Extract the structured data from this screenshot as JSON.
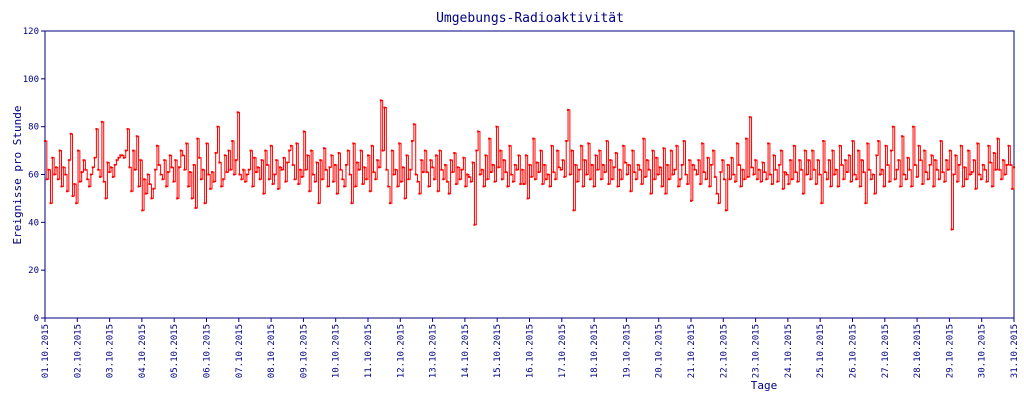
{
  "chart_data": {
    "type": "line",
    "title": "Umgebungs-Radioaktivität",
    "xlabel": "Tage",
    "ylabel": "Ereignisse pro Stunde",
    "ylim": [
      0,
      120
    ],
    "yticks": [
      0,
      20,
      40,
      60,
      80,
      100,
      120
    ],
    "xlim": [
      "01.10.2015",
      "31.10.2015"
    ],
    "xtick_labels": [
      "01.10.2015",
      "02.10.2015",
      "03.10.2015",
      "04.10.2015",
      "05.10.2015",
      "06.10.2015",
      "07.10.2015",
      "08.10.2015",
      "09.10.2015",
      "10.10.2015",
      "11.10.2015",
      "12.10.2015",
      "13.10.2015",
      "14.10.2015",
      "15.10.2015",
      "16.10.2015",
      "17.10.2015",
      "18.10.2015",
      "19.10.2015",
      "20.10.2015",
      "21.10.2015",
      "22.10.2015",
      "23.10.2015",
      "24.10.2015",
      "25.10.2015",
      "26.10.2015",
      "27.10.2015",
      "28.10.2015",
      "29.10.2015",
      "30.10.2015",
      "31.10.2015"
    ],
    "grid": false,
    "colors": {
      "line": "#ff0000",
      "axis": "#000080",
      "text": "#000080"
    },
    "series": [
      {
        "values": [
          [
            74,
            58,
            62,
            48,
            67,
            60,
            63,
            58,
            70,
            55,
            63,
            60,
            53,
            66,
            77,
            51,
            56,
            48,
            70,
            57,
            61,
            66,
            62,
            58,
            55,
            60
          ],
          [
            63,
            67,
            79,
            62,
            59,
            82,
            57,
            50,
            65,
            61,
            63,
            59,
            64,
            66,
            67,
            68,
            68,
            67,
            70,
            79,
            63,
            53,
            70,
            62,
            76,
            55
          ],
          [
            66,
            45,
            58,
            52,
            60,
            56,
            50,
            54,
            62,
            72,
            64,
            60,
            58,
            66,
            55,
            61,
            68,
            63,
            57,
            66,
            50,
            63,
            70,
            68,
            62,
            73
          ],
          [
            55,
            61,
            50,
            64,
            46,
            75,
            67,
            58,
            62,
            48,
            73,
            60,
            54,
            61,
            57,
            69,
            80,
            65,
            55,
            58,
            68,
            61,
            70,
            62,
            74,
            60
          ],
          [
            66,
            86,
            60,
            58,
            62,
            57,
            60,
            62,
            70,
            55,
            67,
            61,
            63,
            58,
            66,
            52,
            70,
            64,
            58,
            72,
            56,
            60,
            66,
            54,
            63,
            62
          ],
          [
            67,
            57,
            65,
            70,
            72,
            64,
            58,
            73,
            56,
            62,
            59,
            78,
            62,
            68,
            53,
            70,
            60,
            57,
            65,
            48,
            66,
            58,
            71,
            62,
            55,
            63
          ],
          [
            68,
            57,
            64,
            52,
            69,
            62,
            58,
            55,
            64,
            70,
            60,
            48,
            73,
            55,
            65,
            62,
            70,
            56,
            63,
            58,
            68,
            53,
            72,
            61,
            58,
            66
          ],
          [
            63,
            91,
            70,
            88,
            62,
            55,
            48,
            70,
            60,
            62,
            55,
            73,
            57,
            63,
            50,
            68,
            58,
            62,
            74,
            81,
            60,
            57,
            52,
            66,
            61,
            70
          ],
          [
            61,
            55,
            66,
            63,
            58,
            68,
            53,
            70,
            62,
            58,
            64,
            57,
            52,
            66,
            61,
            69,
            56,
            63,
            58,
            62,
            67,
            55,
            60,
            59,
            57,
            65
          ],
          [
            39,
            70,
            78,
            60,
            62,
            55,
            68,
            58,
            75,
            61,
            64,
            57,
            80,
            63,
            70,
            58,
            66,
            61,
            55,
            72,
            60,
            57,
            64,
            62,
            68,
            56
          ],
          [
            62,
            56,
            68,
            50,
            64,
            59,
            75,
            58,
            65,
            61,
            70,
            56,
            64,
            58,
            60,
            55,
            72,
            61,
            58,
            70,
            63,
            62,
            66,
            59,
            74,
            87
          ],
          [
            60,
            70,
            45,
            64,
            57,
            62,
            72,
            55,
            66,
            60,
            73,
            58,
            64,
            55,
            68,
            62,
            70,
            58,
            64,
            61,
            74,
            56,
            66,
            58,
            63,
            69
          ],
          [
            55,
            62,
            58,
            72,
            65,
            60,
            64,
            53,
            70,
            61,
            58,
            64,
            62,
            56,
            75,
            59,
            66,
            62,
            52,
            70,
            58,
            67,
            60,
            63,
            55,
            71
          ],
          [
            52,
            64,
            58,
            70,
            60,
            62,
            72,
            55,
            58,
            64,
            74,
            60,
            56,
            66,
            49,
            64,
            62,
            60,
            66,
            56,
            73,
            61,
            58,
            67,
            55,
            64
          ],
          [
            70,
            59,
            52,
            48,
            61,
            66,
            58,
            45,
            64,
            58,
            67,
            60,
            57,
            73,
            64,
            55,
            62,
            58,
            75,
            59,
            84,
            63,
            60,
            66,
            58,
            62
          ],
          [
            57,
            65,
            61,
            58,
            73,
            60,
            56,
            68,
            62,
            57,
            64,
            70,
            54,
            61,
            60,
            56,
            66,
            58,
            72,
            61,
            57,
            66,
            62,
            52,
            70,
            60
          ],
          [
            66,
            58,
            70,
            62,
            56,
            66,
            60,
            48,
            74,
            61,
            58,
            66,
            55,
            70,
            60,
            62,
            55,
            72,
            64,
            58,
            66,
            61,
            68,
            57,
            74,
            60
          ],
          [
            58,
            70,
            55,
            66,
            61,
            48,
            73,
            62,
            58,
            60,
            52,
            68,
            74,
            60,
            62,
            55,
            72,
            64,
            57,
            70,
            80,
            58,
            62,
            66,
            55,
            76
          ],
          [
            60,
            58,
            67,
            62,
            55,
            80,
            64,
            59,
            72,
            66,
            56,
            70,
            61,
            58,
            64,
            68,
            55,
            66,
            62,
            58,
            74,
            61,
            57,
            66,
            62,
            70
          ],
          [
            37,
            60,
            68,
            57,
            64,
            72,
            55,
            63,
            58,
            70,
            60,
            61,
            66,
            54,
            73,
            60,
            58,
            64,
            62,
            57,
            72,
            65,
            55,
            69,
            62,
            75
          ],
          [
            62,
            58,
            66,
            60,
            64,
            72,
            64,
            54,
            63
          ]
        ]
      }
    ]
  }
}
